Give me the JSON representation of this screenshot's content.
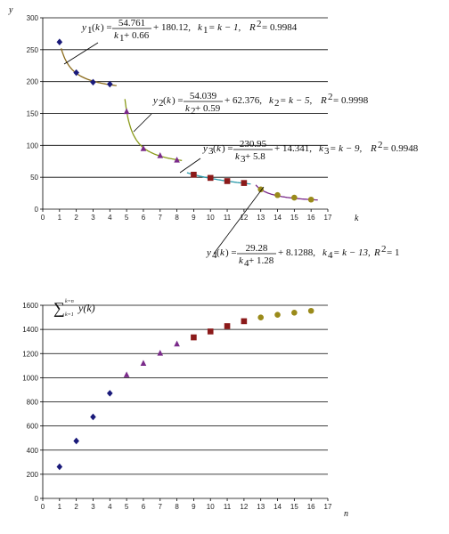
{
  "chart_data": [
    {
      "type": "scatter",
      "xlabel": "k",
      "ylabel": "y",
      "xlim": [
        0,
        17
      ],
      "ylim": [
        0,
        300
      ],
      "xticks": [
        "0",
        "1",
        "2",
        "3",
        "4",
        "5",
        "6",
        "7",
        "8",
        "9",
        "10",
        "11",
        "12",
        "13",
        "14",
        "15",
        "16",
        "17"
      ],
      "yticks": [
        "0",
        "50",
        "100",
        "150",
        "200",
        "250",
        "300"
      ],
      "grid": "horizontal",
      "series": [
        {
          "k": [
            1,
            2,
            3,
            4
          ],
          "y": [
            262,
            214,
            199,
            196
          ],
          "marker": "diamond",
          "color": "#1a1a7a",
          "fit_color": "#8a6a1a",
          "fit": {
            "a": 54.761,
            "b": 0.66,
            "c": 180.12,
            "shift": 1,
            "from": 1.1,
            "to": 4.4
          }
        },
        {
          "k": [
            5,
            6,
            7,
            8
          ],
          "y": [
            153,
            95,
            84,
            77
          ],
          "marker": "triangle",
          "color": "#7a2a8a",
          "fit_color": "#8a9a1a",
          "fit": {
            "a": 54.039,
            "b": 0.59,
            "c": 62.376,
            "shift": 5,
            "from": 4.9,
            "to": 8.3
          }
        },
        {
          "k": [
            9,
            10,
            11,
            12
          ],
          "y": [
            54,
            49,
            44,
            41
          ],
          "marker": "square",
          "color": "#8b1a1a",
          "fit_color": "#2a9aaa",
          "fit": {
            "a": 230.95,
            "b": 5.8,
            "c": 14.341,
            "shift": 9,
            "from": 8.6,
            "to": 12.4
          }
        },
        {
          "k": [
            13,
            14,
            15,
            16
          ],
          "y": [
            31,
            22,
            18,
            15
          ],
          "marker": "circle",
          "color": "#9a8a1a",
          "fit_color": "#7a2a8a",
          "fit": {
            "a": 29.28,
            "b": 1.28,
            "c": 8.1288,
            "shift": 13,
            "from": 12.7,
            "to": 16.4
          }
        }
      ],
      "equations": [
        {
          "lhs": "y",
          "sub": "1",
          "arg": "k",
          "num": "54.761",
          "den_var": "k",
          "den_sub": "1",
          "den_const": "+ 0.66",
          "const": "+ 180.12,",
          "shift_lhs": "k",
          "shift_sub": "1",
          "shift_rhs": "= k − 1,",
          "r2": "R",
          "r2_sup": "2",
          "r2_val": "= 0.9984"
        },
        {
          "lhs": "y",
          "sub": "2",
          "arg": "k",
          "num": "54.039",
          "den_var": "k",
          "den_sub": "2",
          "den_const": "+ 0.59",
          "const": "+ 62.376,",
          "shift_lhs": "k",
          "shift_sub": "2",
          "shift_rhs": "= k − 5,",
          "r2": "R",
          "r2_sup": "2",
          "r2_val": "= 0.9998"
        },
        {
          "lhs": "y",
          "sub": "3",
          "arg": "k",
          "num": "230.95",
          "den_var": "k",
          "den_sub": "3",
          "den_const": "+ 5.8",
          "const": "+ 14.341,",
          "shift_lhs": "k",
          "shift_sub": "3",
          "shift_rhs": "= k − 9,",
          "r2": "R",
          "r2_sup": "2",
          "r2_val": "= 0.9948"
        },
        {
          "lhs": "y",
          "sub": "4",
          "arg": "k",
          "num": "29.28",
          "den_var": "k",
          "den_sub": "4",
          "den_const": "+ 1.28",
          "const": "+ 8.1288,",
          "shift_lhs": "k",
          "shift_sub": "4",
          "shift_rhs": "= k − 13,",
          "r2": "R",
          "r2_sup": "2",
          "r2_val": "= 1"
        }
      ]
    },
    {
      "type": "scatter",
      "xlabel": "n",
      "ylabel_sum": "∑",
      "ylabel_upper": "k=n",
      "ylabel_lower": "k=1",
      "ylabel_expr": "y(k)",
      "xlim": [
        0,
        17
      ],
      "ylim": [
        0,
        1600
      ],
      "xticks": [
        "0",
        "1",
        "2",
        "3",
        "4",
        "5",
        "6",
        "7",
        "8",
        "9",
        "10",
        "11",
        "12",
        "13",
        "14",
        "15",
        "16",
        "17"
      ],
      "yticks": [
        "0",
        "200",
        "400",
        "600",
        "800",
        "1000",
        "1200",
        "1400",
        "1600"
      ],
      "grid": "horizontal",
      "series": [
        {
          "n": [
            1,
            2,
            3,
            4
          ],
          "y": [
            262,
            476,
            675,
            871
          ],
          "marker": "diamond",
          "color": "#1a1a7a"
        },
        {
          "n": [
            5,
            6,
            7,
            8
          ],
          "y": [
            1024,
            1119,
            1203,
            1280
          ],
          "marker": "triangle",
          "color": "#7a2a8a"
        },
        {
          "n": [
            9,
            10,
            11,
            12
          ],
          "y": [
            1334,
            1383,
            1427,
            1468
          ],
          "marker": "square",
          "color": "#8b1a1a"
        },
        {
          "n": [
            13,
            14,
            15,
            16
          ],
          "y": [
            1499,
            1521,
            1539,
            1554
          ],
          "marker": "circle",
          "color": "#9a8a1a"
        }
      ]
    }
  ]
}
